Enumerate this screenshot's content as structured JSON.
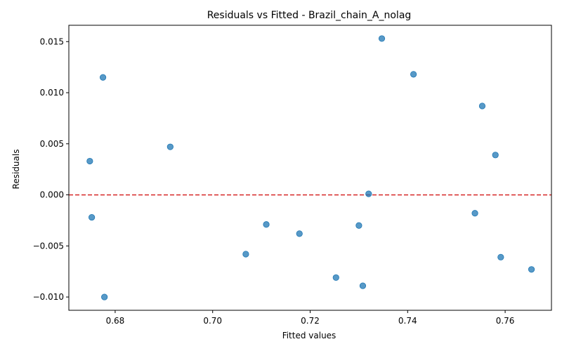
{
  "chart_data": {
    "type": "scatter",
    "title": "Residuals vs Fitted - Brazil_chain_A_nolag",
    "xlabel": "Fitted values",
    "ylabel": "Residuals",
    "xlim": [
      0.6705,
      0.7695
    ],
    "ylim": [
      -0.0113,
      0.0166
    ],
    "x_ticks": [
      0.68,
      0.7,
      0.72,
      0.74,
      0.76
    ],
    "x_tick_labels": [
      "0.68",
      "0.70",
      "0.72",
      "0.74",
      "0.76"
    ],
    "y_ticks": [
      -0.01,
      -0.005,
      0.0,
      0.005,
      0.01,
      0.015
    ],
    "y_tick_labels": [
      "−0.010",
      "−0.005",
      "0.000",
      "0.005",
      "0.010",
      "0.015"
    ],
    "grid": false,
    "reference_line": {
      "y": 0,
      "style": "dashed",
      "color": "#d62728"
    },
    "point_color": "#1f77b4",
    "points": [
      {
        "x": 0.6748,
        "y": 0.0033
      },
      {
        "x": 0.6752,
        "y": -0.0022
      },
      {
        "x": 0.6775,
        "y": 0.0115
      },
      {
        "x": 0.6778,
        "y": -0.01
      },
      {
        "x": 0.6913,
        "y": 0.0047
      },
      {
        "x": 0.7068,
        "y": -0.0058
      },
      {
        "x": 0.711,
        "y": -0.0029
      },
      {
        "x": 0.7178,
        "y": -0.0038
      },
      {
        "x": 0.7253,
        "y": -0.0081
      },
      {
        "x": 0.73,
        "y": -0.003
      },
      {
        "x": 0.7308,
        "y": -0.0089
      },
      {
        "x": 0.732,
        "y": 0.0001
      },
      {
        "x": 0.7347,
        "y": 0.0153
      },
      {
        "x": 0.7412,
        "y": 0.0118
      },
      {
        "x": 0.7538,
        "y": -0.0018
      },
      {
        "x": 0.7553,
        "y": 0.0087
      },
      {
        "x": 0.758,
        "y": 0.0039
      },
      {
        "x": 0.7591,
        "y": -0.0061
      },
      {
        "x": 0.7654,
        "y": -0.0073
      }
    ]
  }
}
